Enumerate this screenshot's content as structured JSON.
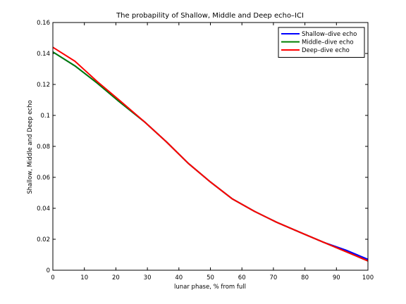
{
  "chart_data": {
    "type": "line",
    "title": "The probapility of Shallow, Middle and Deep echo–ICI",
    "xlabel": "lunar phase, % from full",
    "ylabel": "Shallow, Middle and Deep echo",
    "xlim": [
      0,
      100
    ],
    "ylim": [
      0,
      0.16
    ],
    "xticks": [
      0,
      10,
      20,
      30,
      40,
      50,
      60,
      70,
      80,
      90,
      100
    ],
    "yticks": [
      0,
      0.02,
      0.04,
      0.06,
      0.08,
      0.1,
      0.12,
      0.14,
      0.16
    ],
    "xtick_labels": [
      "0",
      "10",
      "20",
      "30",
      "40",
      "50",
      "60",
      "70",
      "80",
      "90",
      "100"
    ],
    "ytick_labels": [
      "0",
      "0.02",
      "0.04",
      "0.06",
      "0.08",
      "0.1",
      "0.12",
      "0.14",
      "0.16"
    ],
    "grid": false,
    "legend_position": "top-right",
    "x": [
      0,
      7,
      14,
      21,
      29,
      36,
      43,
      50,
      57,
      64,
      71,
      79,
      86,
      93,
      100
    ],
    "series": [
      {
        "name": "Shallow–dive echo",
        "color": "#0000ff",
        "values": [
          0.141,
          0.132,
          0.121,
          0.109,
          0.096,
          0.083,
          0.069,
          0.057,
          0.046,
          0.038,
          0.031,
          0.024,
          0.018,
          0.013,
          0.007
        ]
      },
      {
        "name": "Middle–dive echo",
        "color": "#008000",
        "values": [
          0.141,
          0.132,
          0.121,
          0.109,
          0.096,
          0.083,
          0.069,
          0.057,
          0.046,
          0.038,
          0.031,
          0.024,
          0.018,
          0.012,
          0.006
        ]
      },
      {
        "name": "Deep–dive echo",
        "color": "#ff0000",
        "values": [
          0.144,
          0.135,
          0.122,
          0.11,
          0.096,
          0.083,
          0.069,
          0.057,
          0.046,
          0.038,
          0.031,
          0.024,
          0.018,
          0.012,
          0.006
        ]
      }
    ]
  }
}
